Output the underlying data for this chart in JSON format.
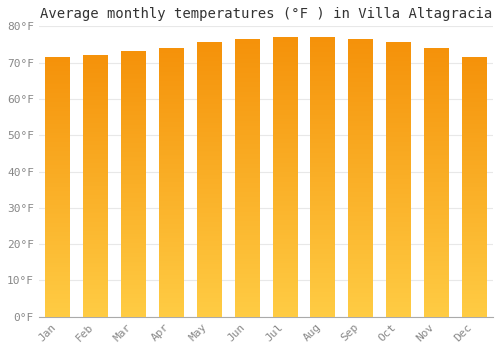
{
  "title": "Average monthly temperatures (°F ) in Villa Altagracia",
  "months": [
    "Jan",
    "Feb",
    "Mar",
    "Apr",
    "May",
    "Jun",
    "Jul",
    "Aug",
    "Sep",
    "Oct",
    "Nov",
    "Dec"
  ],
  "values": [
    71.5,
    72.0,
    73.0,
    74.0,
    75.5,
    76.5,
    77.0,
    77.0,
    76.5,
    75.5,
    74.0,
    71.5
  ],
  "bar_color_bottom": "#FFCC44",
  "bar_color_top": "#F5920A",
  "ylim": [
    0,
    80
  ],
  "yticks": [
    0,
    10,
    20,
    30,
    40,
    50,
    60,
    70,
    80
  ],
  "ytick_labels": [
    "0°F",
    "10°F",
    "20°F",
    "30°F",
    "40°F",
    "50°F",
    "60°F",
    "70°F",
    "80°F"
  ],
  "background_color": "#ffffff",
  "grid_color": "#e8e8e8",
  "title_fontsize": 10,
  "tick_fontsize": 8,
  "font_family": "monospace",
  "bar_width": 0.65
}
